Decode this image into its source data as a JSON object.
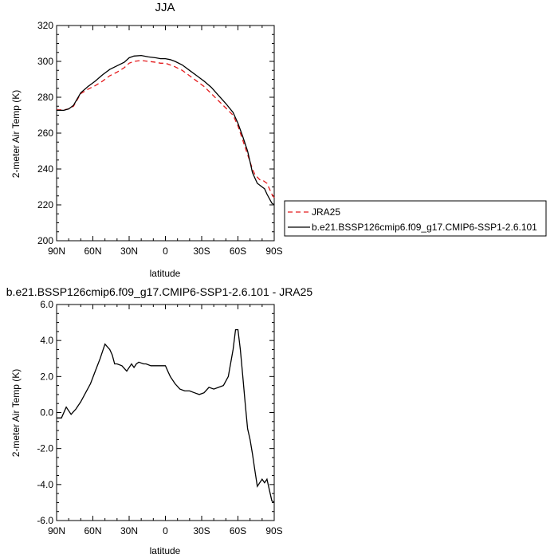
{
  "chart_data": [
    {
      "type": "line",
      "title": "JJA",
      "xlabel": "latitude",
      "ylabel": "2-meter Air Temp (K)",
      "xlim": [
        90,
        -90
      ],
      "ylim": [
        200,
        320
      ],
      "x_ticks": [
        90,
        60,
        30,
        0,
        -30,
        -60,
        -90
      ],
      "x_tick_labels": [
        "90N",
        "60N",
        "30N",
        "0",
        "30S",
        "60S",
        "90S"
      ],
      "y_ticks": [
        200,
        220,
        240,
        260,
        280,
        300,
        320
      ],
      "y_tick_labels": [
        "200",
        "220",
        "240",
        "260",
        "280",
        "300",
        "320"
      ],
      "legend_position": "outside-right",
      "series": [
        {
          "name": "JRA25",
          "color": "#e41a1c",
          "dash": "dashed",
          "x": [
            90,
            84,
            80,
            76,
            70,
            64,
            58,
            52,
            46,
            40,
            34,
            30,
            26,
            20,
            14,
            8,
            4,
            0,
            -4,
            -8,
            -14,
            -20,
            -26,
            -32,
            -38,
            -44,
            -50,
            -56,
            -60,
            -64,
            -68,
            -70,
            -72,
            -74,
            -78,
            -80,
            -84,
            -88,
            -90
          ],
          "y": [
            273,
            273,
            273.5,
            275,
            282,
            284.5,
            286.5,
            289,
            292,
            294,
            296.5,
            299,
            300,
            300.5,
            300,
            299.5,
            299,
            299,
            298,
            297,
            295,
            292,
            289,
            286,
            282,
            278,
            274,
            270,
            264,
            256,
            248,
            244,
            240,
            237,
            234,
            234,
            232,
            226,
            224
          ]
        },
        {
          "name": "b.e21.BSSP126cmip6.f09_g17.CMIP6-SSP1-2.6.101",
          "color": "#000000",
          "dash": "solid",
          "x": [
            90,
            84,
            80,
            76,
            70,
            64,
            58,
            52,
            46,
            40,
            34,
            30,
            26,
            20,
            14,
            8,
            4,
            0,
            -4,
            -8,
            -14,
            -20,
            -26,
            -32,
            -38,
            -44,
            -50,
            -56,
            -60,
            -64,
            -68,
            -70,
            -72,
            -74,
            -76,
            -80,
            -82,
            -84,
            -88,
            -90
          ],
          "y": [
            272.7,
            272.7,
            273.5,
            275.5,
            282.5,
            286,
            289,
            292.5,
            295.5,
            297.5,
            299.5,
            302,
            303,
            303.3,
            302.5,
            302,
            301.5,
            301.5,
            301,
            300,
            298,
            295,
            292,
            289,
            285.5,
            281,
            276.5,
            271.5,
            265.5,
            258,
            250,
            244,
            238,
            235,
            232,
            230,
            229,
            226,
            221,
            220
          ]
        }
      ]
    },
    {
      "type": "line",
      "title": "b.e21.BSSP126cmip6.f09_g17.CMIP6-SSP1-2.6.101 - JRA25",
      "xlabel": "latitude",
      "ylabel": "2-meter Air Temp (K)",
      "xlim": [
        90,
        -90
      ],
      "ylim": [
        -6,
        6
      ],
      "x_ticks": [
        90,
        60,
        30,
        0,
        -30,
        -60,
        -90
      ],
      "x_tick_labels": [
        "90N",
        "60N",
        "30N",
        "0",
        "30S",
        "60S",
        "90S"
      ],
      "y_ticks": [
        -6,
        -4,
        -2,
        0,
        2,
        4,
        6
      ],
      "y_tick_labels": [
        "-6.0",
        "-4.0",
        "-2.0",
        "0.0",
        "2.0",
        "4.0",
        "6.0"
      ],
      "series": [
        {
          "color": "#000000",
          "dash": "solid",
          "x": [
            90,
            86,
            82,
            78,
            74,
            70,
            66,
            62,
            58,
            54,
            50,
            46,
            44,
            42,
            40,
            36,
            32,
            28,
            26,
            24,
            22,
            18,
            16,
            12,
            8,
            4,
            0,
            -2,
            -4,
            -8,
            -12,
            -16,
            -20,
            -24,
            -28,
            -32,
            -36,
            -40,
            -44,
            -48,
            -52,
            -56,
            -58,
            -60,
            -62,
            -64,
            -66,
            -68,
            -70,
            -72,
            -74,
            -76,
            -80,
            -82,
            -84,
            -88,
            -90
          ],
          "y": [
            -0.3,
            -0.3,
            0.3,
            -0.1,
            0.2,
            0.6,
            1.1,
            1.6,
            2.3,
            3.0,
            3.8,
            3.5,
            3.2,
            2.7,
            2.7,
            2.6,
            2.3,
            2.7,
            2.5,
            2.7,
            2.8,
            2.7,
            2.7,
            2.6,
            2.6,
            2.6,
            2.6,
            2.3,
            2.0,
            1.6,
            1.3,
            1.2,
            1.2,
            1.1,
            1.0,
            1.1,
            1.4,
            1.3,
            1.4,
            1.5,
            2.0,
            3.5,
            4.6,
            4.6,
            3.5,
            2.0,
            0.5,
            -0.9,
            -1.5,
            -2.3,
            -3.2,
            -4.1,
            -3.7,
            -3.9,
            -3.7,
            -4.9,
            -5.0
          ]
        }
      ]
    }
  ]
}
